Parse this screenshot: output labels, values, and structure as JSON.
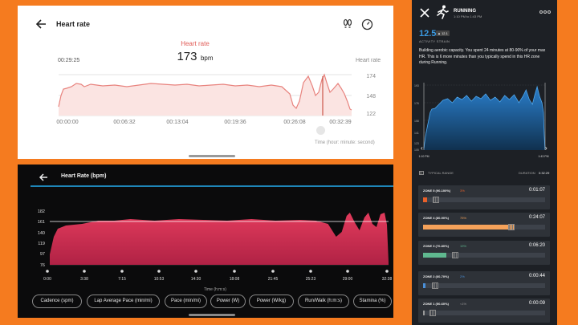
{
  "panel1": {
    "title": "Heart rate",
    "icons": [
      "back-arrow-icon",
      "footsteps-icon",
      "gauge-icon"
    ],
    "selected_label": "Heart rate",
    "selected_value": "173",
    "selected_unit": "bpm",
    "selected_time": "00:29:25",
    "y_axis_title": "Heart rate",
    "y_ticks": [
      "174",
      "148",
      "122"
    ],
    "x_ticks": [
      "00:00:00",
      "00:06:32",
      "00:13:04",
      "00:19:36",
      "00:26:08",
      "00:32:39"
    ],
    "x_axis_title": "Time (hour: minute: second)",
    "series_color": "#e8837e",
    "fill_color": "#fbe4e2"
  },
  "panel2": {
    "title": "Heart Rate (bpm)",
    "icons": [
      "back-arrow-icon"
    ],
    "y_ticks": [
      "182",
      "161",
      "140",
      "119",
      "97",
      "76"
    ],
    "x_ticks": [
      "0:00",
      "3:38",
      "7:15",
      "10:53",
      "14:30",
      "18:08",
      "21:45",
      "25:23",
      "29:00",
      "32:38"
    ],
    "x_axis_title": "Time (h:m:s)",
    "metric_buttons": [
      "Cadence (spm)",
      "Lap Average Pace (min/mi)",
      "Pace (min/mi)",
      "Power (W)",
      "Power (W/kg)",
      "Run/Walk (h:m:s)",
      "Stamina (%)"
    ],
    "series_color": "#e23b5c"
  },
  "panel3": {
    "icons": [
      "close-icon",
      "running-figure-icon",
      "more-icon"
    ],
    "activity": "RUNNING",
    "time_range": "1:10 PM to 1:43 PM",
    "strain_value": "12.5",
    "strain_badge": "▲ 12.1",
    "strain_label": "ACTIVITY STRAIN",
    "description": "Building aerobic capacity. You spent 24 minutes at 80-90% of your max HR. This is 6 more minutes than you typically spend in this HR zone during Running.",
    "y_ticks": [
      "193",
      "176",
      "158",
      "141",
      "123",
      "105"
    ],
    "x_start": "1:10 PM",
    "x_end": "1:43 PM",
    "typical_range_label": "TYPICAL RANGE",
    "duration_label": "DURATION",
    "duration_value": "0:32:29",
    "series_color": "#1f6fb5",
    "zones": [
      {
        "name": "ZONE 5 (90-100%)",
        "percent": "3%",
        "time": "0:01:07",
        "color": "#e8602a",
        "fraction": 0.03
      },
      {
        "name": "ZONE 4 (80-90%)",
        "percent": "75%",
        "time": "0:24:07",
        "color": "#f5a25a",
        "fraction": 0.75
      },
      {
        "name": "ZONE 3 (70-80%)",
        "percent": "19%",
        "time": "0:06:20",
        "color": "#5fb88f",
        "fraction": 0.19
      },
      {
        "name": "ZONE 2 (60-70%)",
        "percent": "2%",
        "time": "0:00:44",
        "color": "#4a90d9",
        "fraction": 0.02
      },
      {
        "name": "ZONE 1 (50-60%)",
        "percent": "<1%",
        "time": "0:00:09",
        "color": "#9a9a9a",
        "fraction": 0.005
      }
    ]
  }
}
